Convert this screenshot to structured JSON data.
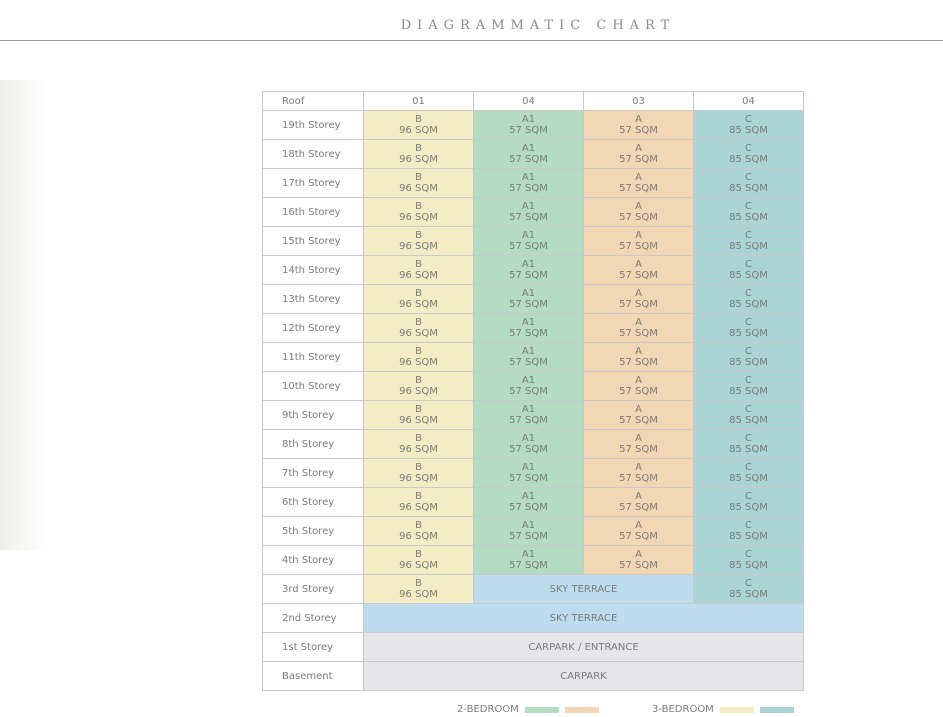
{
  "title": "DIAGRAMMATIC CHART",
  "colors": {
    "yellow": "#f3ecc4",
    "green": "#b3dcc2",
    "orange": "#f2d7b5",
    "teal": "#aad4d5",
    "sky": "#bddcee",
    "grey": "#e6e6e8"
  },
  "header": {
    "label": "Roof",
    "units": [
      "01",
      "04",
      "03",
      "04"
    ]
  },
  "unit_types": [
    {
      "type": "B",
      "size": "96 SQM",
      "color": "yellow"
    },
    {
      "type": "A1",
      "size": "57 SQM",
      "color": "green"
    },
    {
      "type": "A",
      "size": "57 SQM",
      "color": "orange"
    },
    {
      "type": "C",
      "size": "85 SQM",
      "color": "teal"
    }
  ],
  "typical_storeys": [
    "19th Storey",
    "18th Storey",
    "17th Storey",
    "16th Storey",
    "15th Storey",
    "14th Storey",
    "13th Storey",
    "12th Storey",
    "11th Storey",
    "10th Storey",
    "9th Storey",
    "8th Storey",
    "7th Storey",
    "6th Storey",
    "5th Storey",
    "4th Storey"
  ],
  "third_storey": {
    "label": "3rd Storey",
    "sky_terrace": "SKY TERRACE"
  },
  "lower_storeys": [
    {
      "label": "2nd Storey",
      "text": "SKY TERRACE",
      "color": "sky"
    },
    {
      "label": "1st Storey",
      "text": "CARPARK / ENTRANCE",
      "color": "grey"
    },
    {
      "label": "Basement",
      "text": "CARPARK",
      "color": "grey"
    }
  ],
  "legend": [
    {
      "label": "2-BEDROOM",
      "colors": [
        "green",
        "orange"
      ]
    },
    {
      "label": "3-BEDROOM",
      "colors": [
        "yellow",
        "teal"
      ]
    }
  ]
}
